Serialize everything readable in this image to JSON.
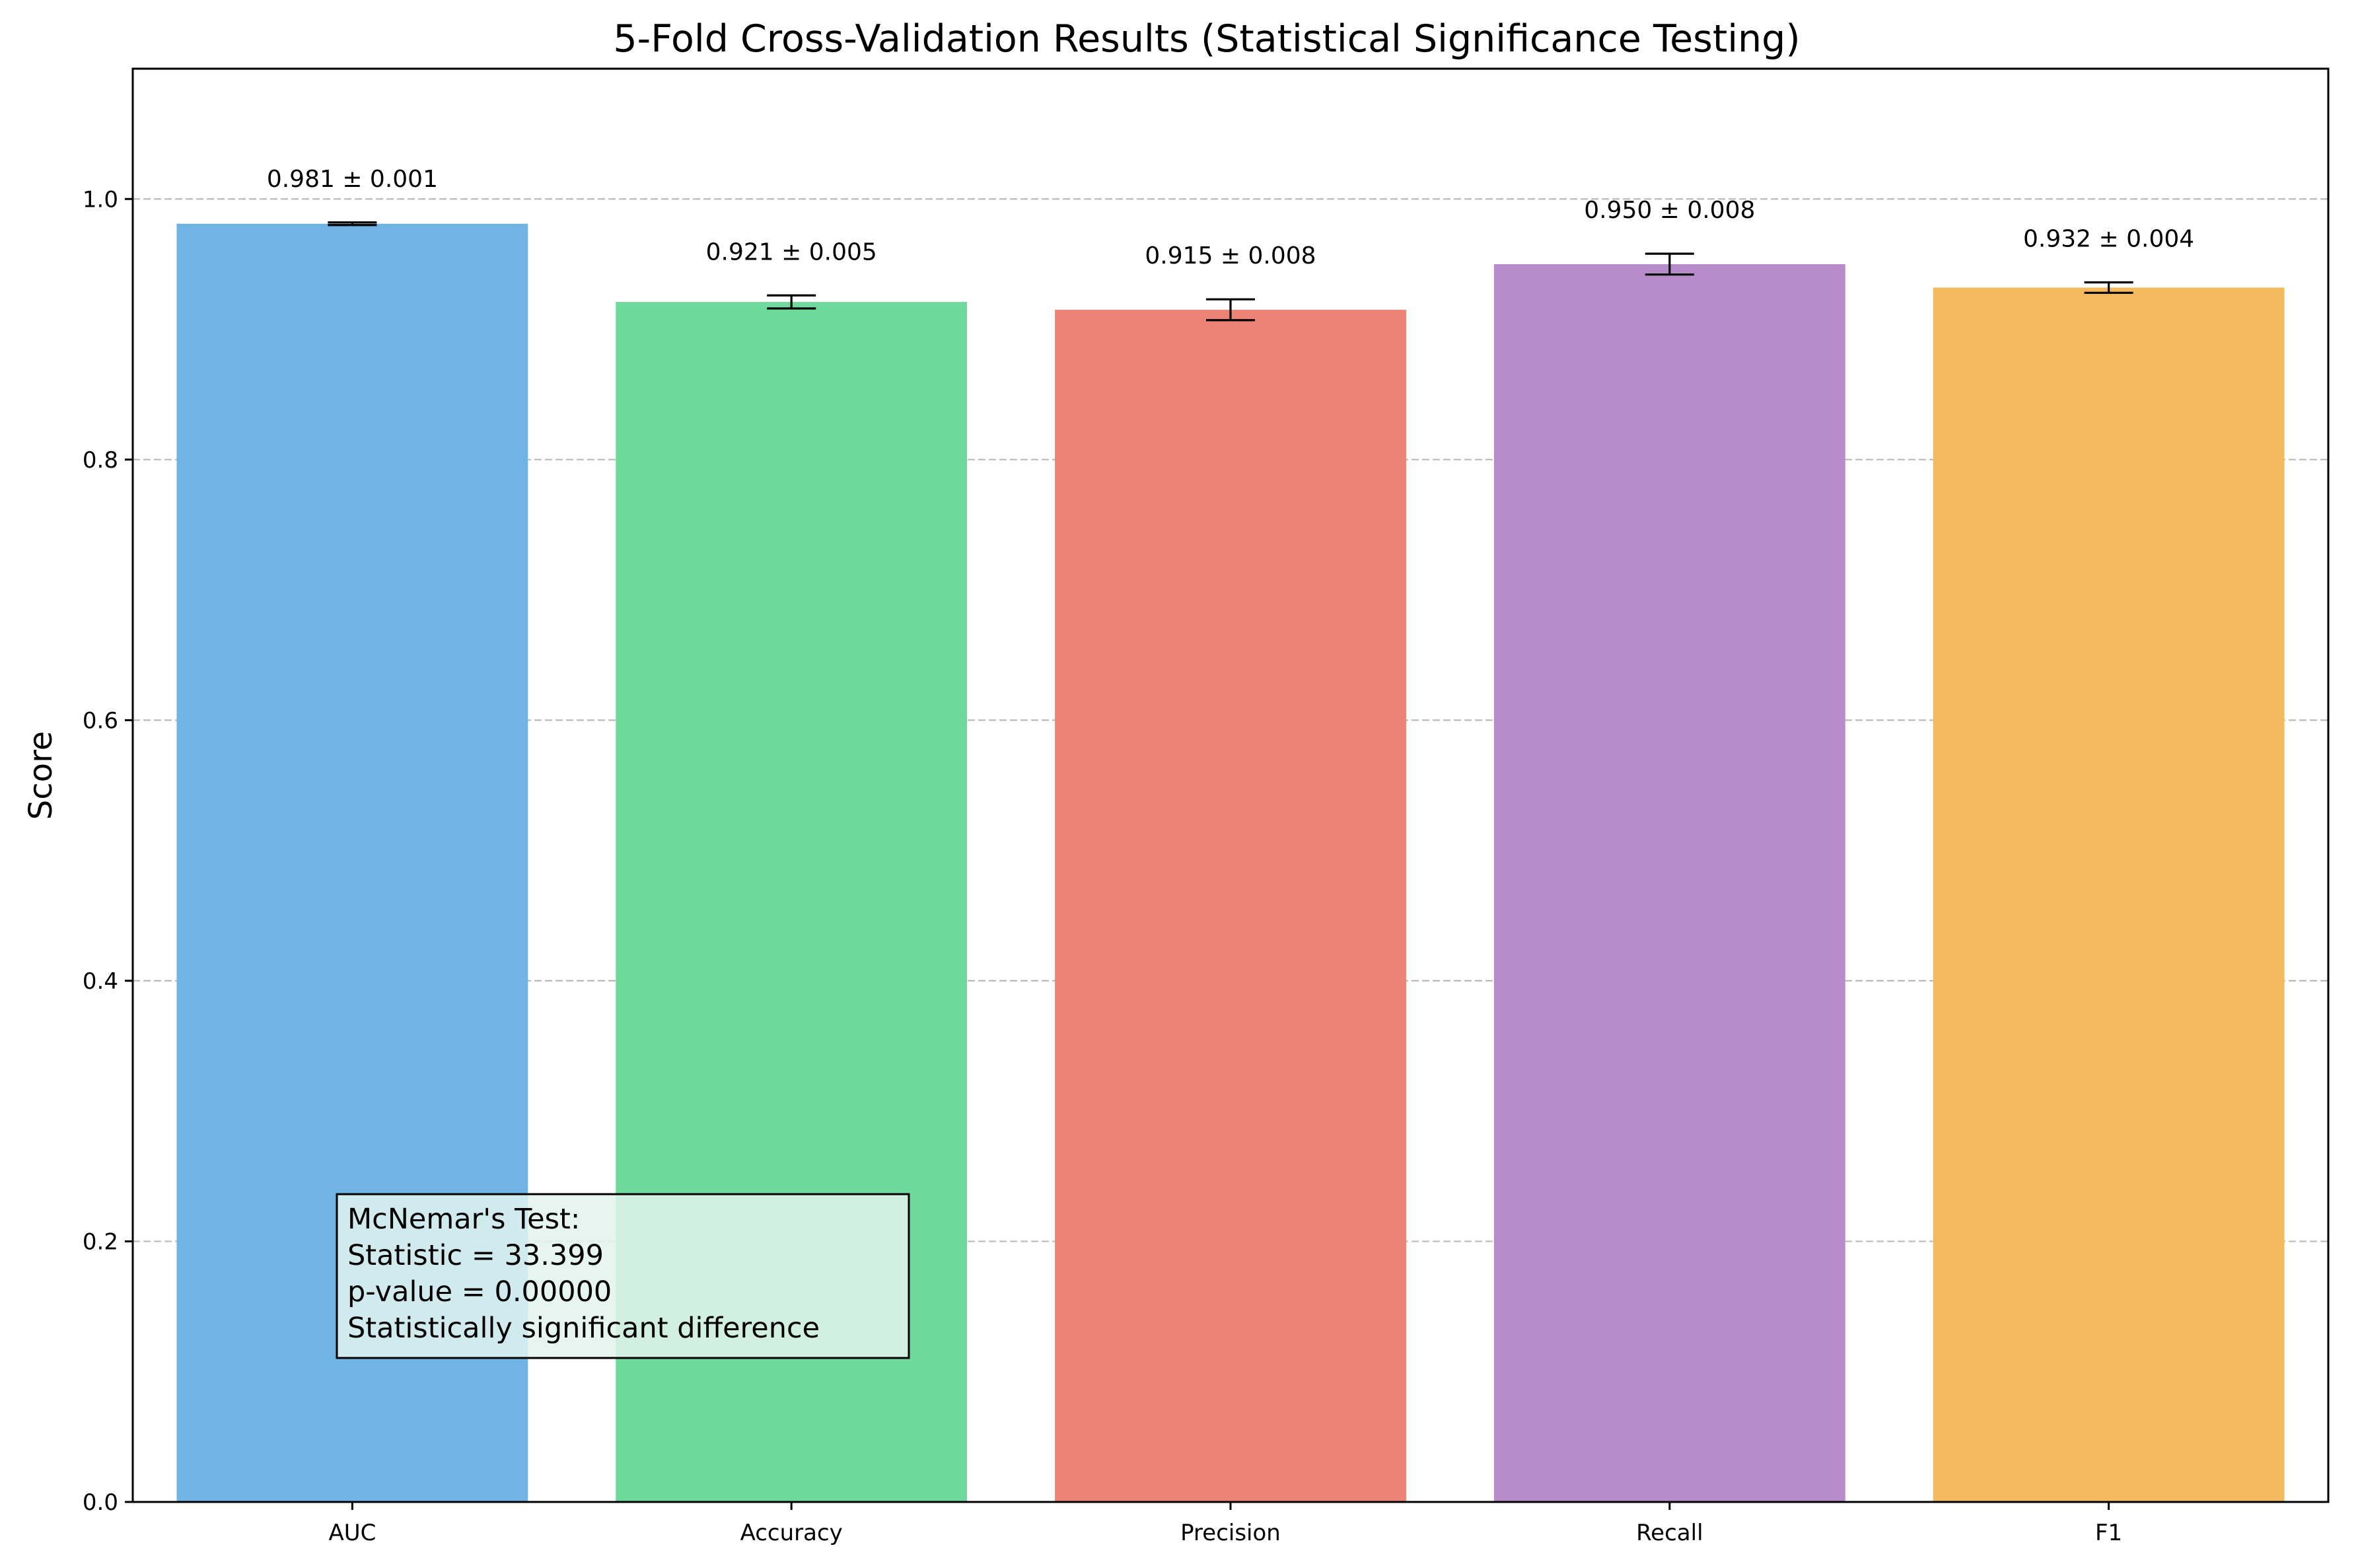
{
  "chart_data": {
    "type": "bar",
    "title": "5-Fold Cross-Validation Results (Statistical Significance Testing)",
    "xlabel": "",
    "ylabel": "Score",
    "ylim": [
      0,
      1.1
    ],
    "yticks": [
      0.0,
      0.2,
      0.4,
      0.6,
      0.8,
      1.0
    ],
    "ytick_labels": [
      "0.0",
      "0.2",
      "0.4",
      "0.6",
      "0.8",
      "1.0"
    ],
    "grid": {
      "y": true,
      "x": false,
      "style": "dashed"
    },
    "categories": [
      "AUC",
      "Accuracy",
      "Precision",
      "Recall",
      "F1"
    ],
    "values": [
      0.981,
      0.921,
      0.915,
      0.95,
      0.932
    ],
    "errors": [
      0.001,
      0.005,
      0.008,
      0.008,
      0.004
    ],
    "bar_labels": [
      "0.981 ± 0.001",
      "0.921 ± 0.005",
      "0.915 ± 0.008",
      "0.950 ± 0.008",
      "0.932 ± 0.004"
    ],
    "colors": [
      "#6fb4e3",
      "#6fd99b",
      "#ed8277",
      "#b78bc9",
      "#f3b95c"
    ],
    "annotation": {
      "lines": [
        "McNemar's Test:",
        "Statistic = 33.399",
        "p-value = 0.00000",
        "Statistically significant difference"
      ],
      "background": "#e3f3ee",
      "border": "#000000"
    }
  }
}
